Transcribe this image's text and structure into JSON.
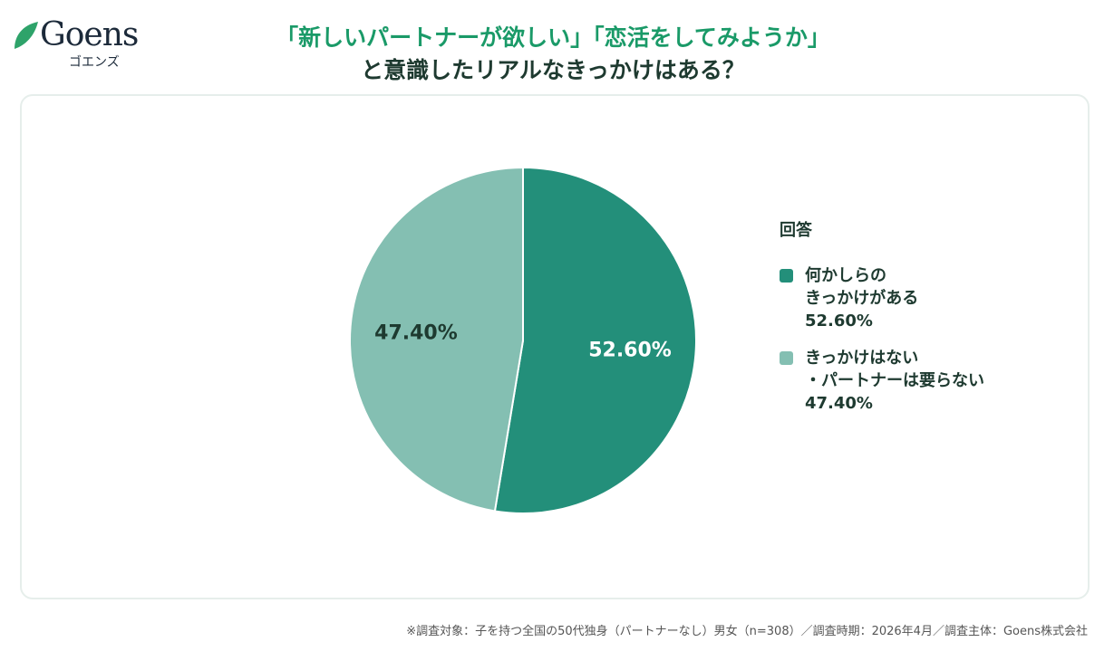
{
  "logo": {
    "text": "Goens",
    "kana": "ゴエンズ"
  },
  "title_line1": "「新しいパートナーが欲しい」「恋活をしてみようか」",
  "title_line2": "と意識したリアルなきっかけはある？",
  "footnote": "※調査対象：子を持つ全国の50代独身（パートナーなし）男女（n=308）／調査時期：2026年4月／調査主体：Goens株式会社",
  "chart_data": {
    "type": "pie",
    "legend_title": "回答",
    "legend_position": "right",
    "slices": [
      {
        "name": "何かしらの\nきっかけがある",
        "value": 52.6,
        "label": "52.60%",
        "color": "#238f7a",
        "label_color": "#ffffff"
      },
      {
        "name": "きっかけはない\n・パートナーは要らない",
        "value": 47.4,
        "label": "47.40%",
        "color": "#84bfb2",
        "label_color": "#1e3a30"
      }
    ]
  }
}
